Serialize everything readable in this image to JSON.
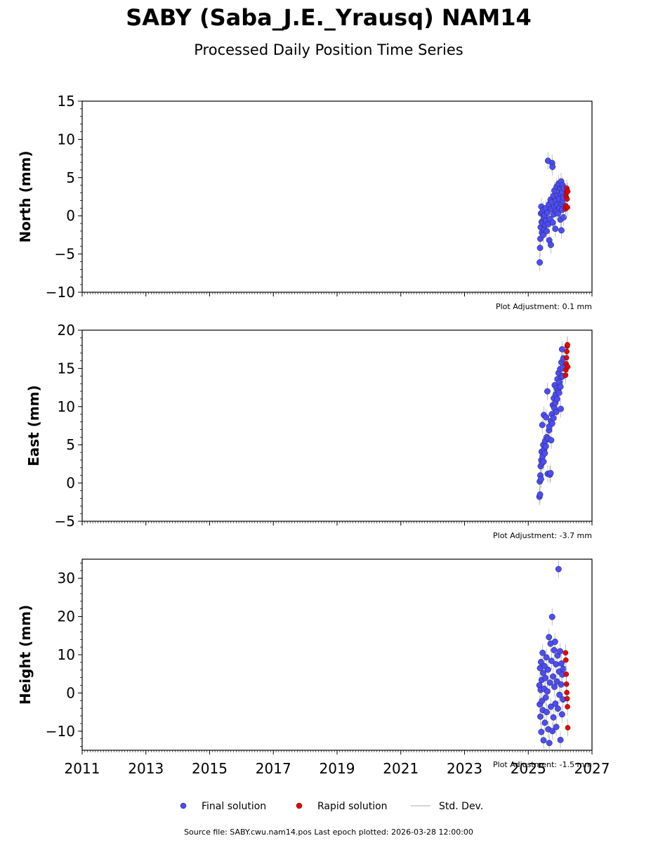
{
  "header": {
    "title": "SABY (Saba_J.E._Yrausq) NAM14",
    "subtitle": "Processed Daily Position Time Series"
  },
  "legend": {
    "final": "Final solution",
    "rapid": "Rapid solution",
    "std": "Std. Dev."
  },
  "footer": {
    "source": "Source file: SABY.cwu.nam14.pos  Last epoch plotted: 2026-03-28 12:00:00"
  },
  "colors": {
    "final": "#4c4cff",
    "rapid": "#ee0000",
    "std": "#b0b0b0"
  },
  "chart_data": [
    {
      "type": "scatter",
      "id": "north",
      "ylabel": "North (mm)",
      "ylim": [
        -10,
        15
      ],
      "yticks": [
        -10,
        -5,
        0,
        5,
        10,
        15
      ],
      "xlim": [
        2011,
        2027
      ],
      "xticks": [
        2011,
        2013,
        2015,
        2017,
        2019,
        2021,
        2023,
        2025,
        2027
      ],
      "show_xtick_labels": false,
      "adjustment": "Plot Adjustment: 0.1 mm",
      "series": [
        {
          "name": "Final solution",
          "points": [
            [
              2025.36,
              -6.1
            ],
            [
              2025.37,
              -4.2
            ],
            [
              2025.38,
              -3.0
            ],
            [
              2025.39,
              -1.5
            ],
            [
              2025.4,
              0.3
            ],
            [
              2025.41,
              1.2
            ],
            [
              2025.42,
              -0.8
            ],
            [
              2025.43,
              -2.2
            ],
            [
              2025.44,
              0.5
            ],
            [
              2025.45,
              -1.0
            ],
            [
              2025.47,
              -2.5
            ],
            [
              2025.48,
              0.8
            ],
            [
              2025.49,
              -0.3
            ],
            [
              2025.5,
              -1.8
            ],
            [
              2025.52,
              0.1
            ],
            [
              2025.53,
              -1.2
            ],
            [
              2025.55,
              1.0
            ],
            [
              2025.56,
              -0.6
            ],
            [
              2025.58,
              -2.0
            ],
            [
              2025.6,
              0.4
            ],
            [
              2025.62,
              7.2
            ],
            [
              2025.63,
              -1.1
            ],
            [
              2025.65,
              1.5
            ],
            [
              2025.66,
              -3.2
            ],
            [
              2025.68,
              -0.4
            ],
            [
              2025.7,
              2.1
            ],
            [
              2025.71,
              -3.8
            ],
            [
              2025.72,
              0.9
            ],
            [
              2025.74,
              1.8
            ],
            [
              2025.75,
              6.9
            ],
            [
              2025.76,
              6.4
            ],
            [
              2025.77,
              -0.9
            ],
            [
              2025.79,
              2.6
            ],
            [
              2025.8,
              0.2
            ],
            [
              2025.82,
              3.3
            ],
            [
              2025.83,
              1.1
            ],
            [
              2025.85,
              -1.7
            ],
            [
              2025.86,
              2.0
            ],
            [
              2025.88,
              0.6
            ],
            [
              2025.89,
              3.8
            ],
            [
              2025.91,
              1.4
            ],
            [
              2025.92,
              2.7
            ],
            [
              2025.94,
              0.3
            ],
            [
              2025.95,
              4.2
            ],
            [
              2025.97,
              2.2
            ],
            [
              2025.98,
              1.0
            ],
            [
              2026.0,
              3.5
            ],
            [
              2026.01,
              -0.5
            ],
            [
              2026.02,
              2.9
            ],
            [
              2026.03,
              4.5
            ],
            [
              2026.04,
              -1.9
            ],
            [
              2026.05,
              1.6
            ],
            [
              2026.06,
              3.1
            ],
            [
              2026.07,
              0.8
            ],
            [
              2026.08,
              4.0
            ],
            [
              2026.09,
              1.9
            ],
            [
              2026.1,
              2.4
            ],
            [
              2026.11,
              -0.2
            ],
            [
              2026.12,
              3.6
            ]
          ]
        },
        {
          "name": "Rapid solution",
          "points": [
            [
              2026.17,
              0.9
            ],
            [
              2026.18,
              1.3
            ],
            [
              2026.19,
              2.5
            ],
            [
              2026.2,
              3.0
            ],
            [
              2026.21,
              3.6
            ],
            [
              2026.22,
              2.2
            ],
            [
              2026.23,
              1.1
            ],
            [
              2026.24,
              3.2
            ]
          ]
        }
      ]
    },
    {
      "type": "scatter",
      "id": "east",
      "ylabel": "East (mm)",
      "ylim": [
        -5,
        20
      ],
      "yticks": [
        -5,
        0,
        5,
        10,
        15,
        20
      ],
      "xlim": [
        2011,
        2027
      ],
      "xticks": [
        2011,
        2013,
        2015,
        2017,
        2019,
        2021,
        2023,
        2025,
        2027
      ],
      "show_xtick_labels": false,
      "adjustment": "Plot Adjustment: -3.7 mm",
      "series": [
        {
          "name": "Final solution",
          "points": [
            [
              2025.35,
              -1.8
            ],
            [
              2025.36,
              0.2
            ],
            [
              2025.37,
              -1.5
            ],
            [
              2025.38,
              1.0
            ],
            [
              2025.39,
              2.2
            ],
            [
              2025.4,
              0.5
            ],
            [
              2025.41,
              3.0
            ],
            [
              2025.42,
              4.1
            ],
            [
              2025.43,
              2.6
            ],
            [
              2025.44,
              7.6
            ],
            [
              2025.45,
              3.5
            ],
            [
              2025.47,
              5.0
            ],
            [
              2025.48,
              2.8
            ],
            [
              2025.49,
              8.9
            ],
            [
              2025.5,
              4.4
            ],
            [
              2025.52,
              3.9
            ],
            [
              2025.53,
              5.5
            ],
            [
              2025.55,
              4.8
            ],
            [
              2025.56,
              8.6
            ],
            [
              2025.58,
              6.0
            ],
            [
              2025.6,
              12.0
            ],
            [
              2025.61,
              1.2
            ],
            [
              2025.63,
              5.8
            ],
            [
              2025.65,
              6.9
            ],
            [
              2025.66,
              7.4
            ],
            [
              2025.68,
              1.1
            ],
            [
              2025.7,
              1.3
            ],
            [
              2025.71,
              8.1
            ],
            [
              2025.72,
              5.6
            ],
            [
              2025.74,
              9.0
            ],
            [
              2025.75,
              7.8
            ],
            [
              2025.77,
              10.2
            ],
            [
              2025.79,
              8.5
            ],
            [
              2025.8,
              11.1
            ],
            [
              2025.82,
              9.8
            ],
            [
              2025.83,
              12.8
            ],
            [
              2025.85,
              10.5
            ],
            [
              2025.86,
              11.6
            ],
            [
              2025.88,
              9.3
            ],
            [
              2025.89,
              12.4
            ],
            [
              2025.91,
              11.0
            ],
            [
              2025.92,
              13.6
            ],
            [
              2025.94,
              12.1
            ],
            [
              2025.95,
              14.4
            ],
            [
              2025.97,
              11.8
            ],
            [
              2025.98,
              13.2
            ],
            [
              2026.0,
              14.9
            ],
            [
              2026.01,
              12.6
            ],
            [
              2026.02,
              9.7
            ],
            [
              2026.04,
              15.8
            ],
            [
              2026.05,
              13.9
            ],
            [
              2026.06,
              17.5
            ],
            [
              2026.08,
              15.1
            ],
            [
              2026.09,
              14.0
            ],
            [
              2026.1,
              16.3
            ]
          ]
        },
        {
          "name": "Rapid solution",
          "points": [
            [
              2026.17,
              14.1
            ],
            [
              2026.18,
              14.8
            ],
            [
              2026.19,
              15.6
            ],
            [
              2026.2,
              16.4
            ],
            [
              2026.21,
              17.2
            ],
            [
              2026.22,
              17.9
            ],
            [
              2026.23,
              18.1
            ],
            [
              2026.24,
              15.2
            ]
          ]
        }
      ]
    },
    {
      "type": "scatter",
      "id": "height",
      "ylabel": "Height (mm)",
      "ylim": [
        -15,
        35
      ],
      "yticks": [
        -10,
        0,
        10,
        20,
        30
      ],
      "xlim": [
        2011,
        2027
      ],
      "xticks": [
        2011,
        2013,
        2015,
        2017,
        2019,
        2021,
        2023,
        2025,
        2027
      ],
      "show_xtick_labels": true,
      "adjustment": "Plot Adjustment: -1.5 mm",
      "series": [
        {
          "name": "Final solution",
          "points": [
            [
              2025.35,
              2.0
            ],
            [
              2025.36,
              -3.0
            ],
            [
              2025.37,
              6.5
            ],
            [
              2025.38,
              -6.2
            ],
            [
              2025.39,
              0.8
            ],
            [
              2025.4,
              8.1
            ],
            [
              2025.41,
              -10.2
            ],
            [
              2025.42,
              3.4
            ],
            [
              2025.43,
              -2.1
            ],
            [
              2025.45,
              10.5
            ],
            [
              2025.46,
              -4.5
            ],
            [
              2025.47,
              5.2
            ],
            [
              2025.48,
              -12.4
            ],
            [
              2025.5,
              1.1
            ],
            [
              2025.51,
              7.0
            ],
            [
              2025.52,
              -7.8
            ],
            [
              2025.54,
              3.9
            ],
            [
              2025.55,
              -1.2
            ],
            [
              2025.57,
              9.3
            ],
            [
              2025.58,
              -5.0
            ],
            [
              2025.6,
              0.4
            ],
            [
              2025.62,
              6.1
            ],
            [
              2025.63,
              -9.5
            ],
            [
              2025.65,
              14.6
            ],
            [
              2025.66,
              -13.1
            ],
            [
              2025.68,
              2.7
            ],
            [
              2025.7,
              12.9
            ],
            [
              2025.71,
              -3.6
            ],
            [
              2025.73,
              8.4
            ],
            [
              2025.75,
              19.9
            ],
            [
              2025.76,
              -10.0
            ],
            [
              2025.78,
              4.3
            ],
            [
              2025.79,
              -6.4
            ],
            [
              2025.81,
              11.2
            ],
            [
              2025.82,
              1.6
            ],
            [
              2025.84,
              13.4
            ],
            [
              2025.85,
              -2.8
            ],
            [
              2025.87,
              7.5
            ],
            [
              2025.88,
              -8.9
            ],
            [
              2025.9,
              3.0
            ],
            [
              2025.92,
              9.8
            ],
            [
              2025.93,
              -4.1
            ],
            [
              2025.95,
              32.4
            ],
            [
              2025.97,
              5.6
            ],
            [
              2025.98,
              -0.5
            ],
            [
              2026.0,
              10.9
            ],
            [
              2026.01,
              -12.3
            ],
            [
              2026.03,
              2.2
            ],
            [
              2026.04,
              7.7
            ],
            [
              2026.06,
              -5.6
            ],
            [
              2026.07,
              4.8
            ],
            [
              2026.09,
              -1.7
            ],
            [
              2026.1,
              6.3
            ]
          ]
        },
        {
          "name": "Rapid solution",
          "points": [
            [
              2026.17,
              10.5
            ],
            [
              2026.18,
              8.6
            ],
            [
              2026.19,
              4.9
            ],
            [
              2026.2,
              2.3
            ],
            [
              2026.21,
              0.1
            ],
            [
              2026.22,
              -1.5
            ],
            [
              2026.23,
              -3.6
            ],
            [
              2026.24,
              -9.1
            ]
          ]
        }
      ]
    }
  ]
}
